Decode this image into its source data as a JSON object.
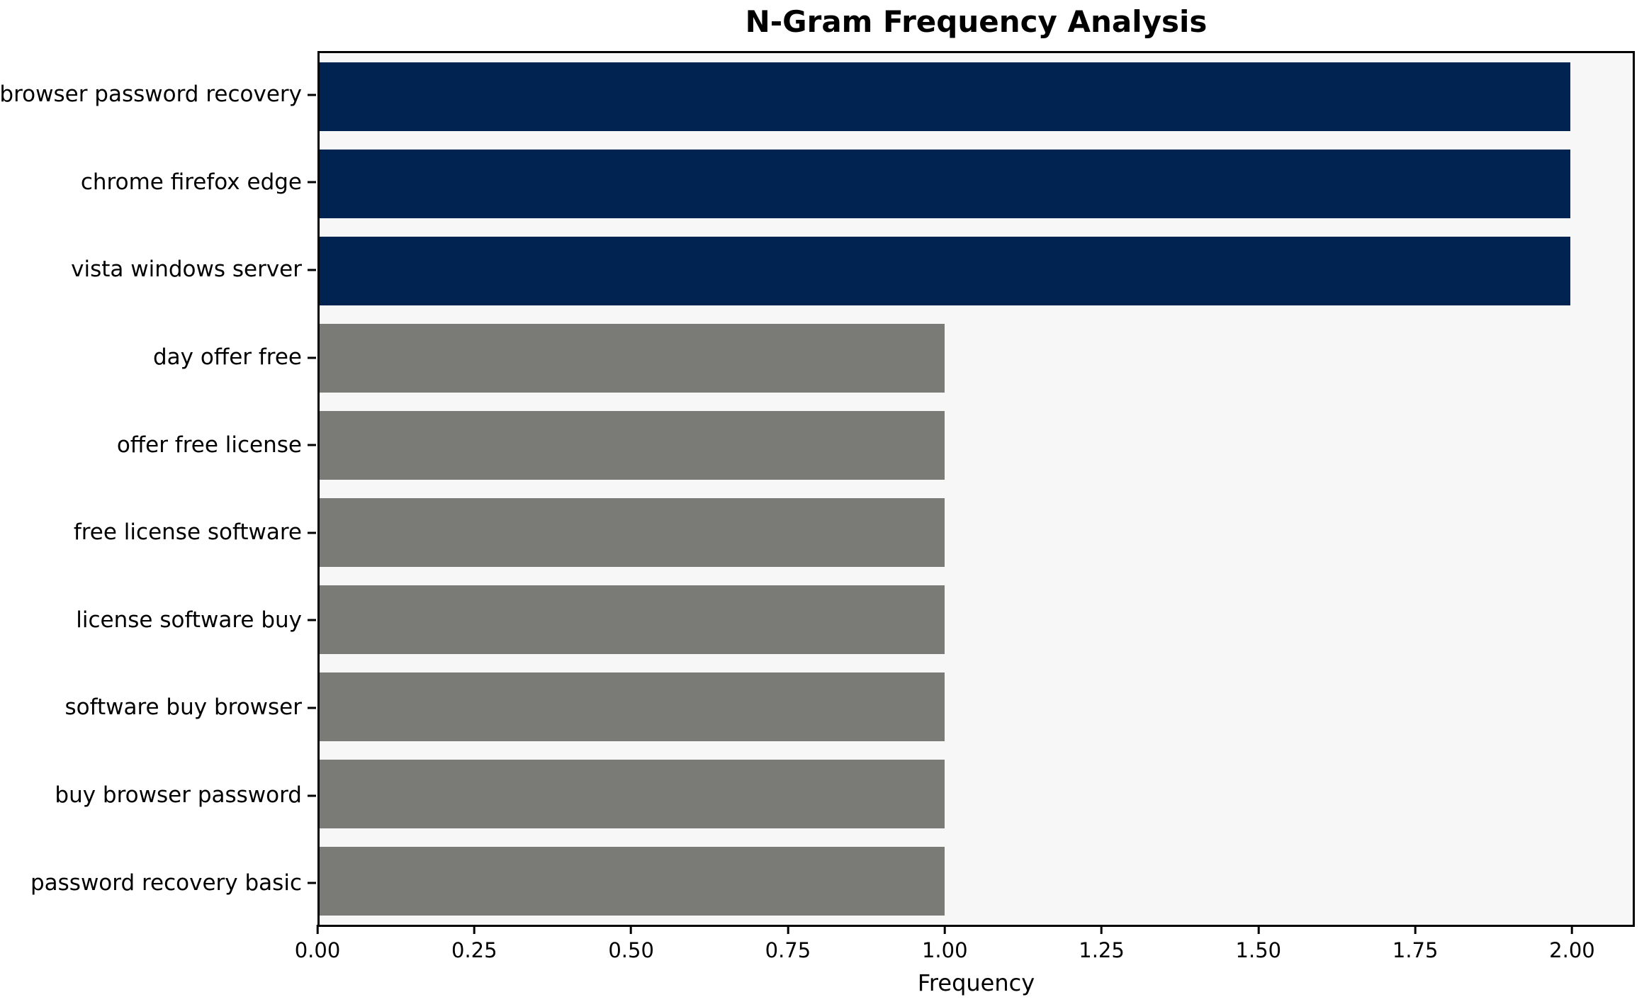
{
  "chart_data": {
    "type": "bar",
    "orientation": "horizontal",
    "title": "N-Gram Frequency Analysis",
    "xlabel": "Frequency",
    "ylabel": "",
    "categories": [
      "browser password recovery",
      "chrome firefox edge",
      "vista windows server",
      "day offer free",
      "offer free license",
      "free license software",
      "license software buy",
      "software buy browser",
      "buy browser password",
      "password recovery basic"
    ],
    "values": [
      2,
      2,
      2,
      1,
      1,
      1,
      1,
      1,
      1,
      1
    ],
    "bar_colors": [
      "#012351",
      "#012351",
      "#012351",
      "#7a7a77",
      "#7a7a77",
      "#7a7a77",
      "#7a7a77",
      "#7a7a77",
      "#7a7a77",
      "#7a7a77"
    ],
    "xlim": [
      0,
      2.1
    ],
    "xticks": [
      0,
      0.25,
      0.5,
      0.75,
      1.0,
      1.25,
      1.5,
      1.75,
      2.0
    ],
    "xtick_labels": [
      "0.00",
      "0.25",
      "0.50",
      "0.75",
      "1.00",
      "1.25",
      "1.50",
      "1.75",
      "2.00"
    ],
    "grid": false,
    "legend": null,
    "colors": {
      "highlight_bar": "#012351",
      "default_bar": "#7a7a77",
      "plot_background": "#f7f7f7",
      "figure_background": "#ffffff",
      "spine": "#000000",
      "text": "#000000"
    }
  }
}
